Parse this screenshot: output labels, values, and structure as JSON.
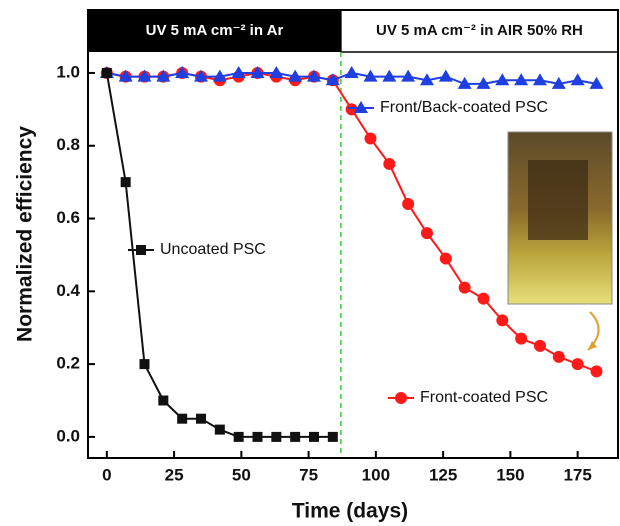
{
  "chart_data": {
    "type": "line",
    "x_label": "Time (days)",
    "y_label": "Normalized efficiency",
    "xlim": [
      -7,
      190
    ],
    "ylim": [
      -0.058,
      1.173
    ],
    "xticks": [
      0,
      25,
      50,
      75,
      100,
      125,
      150,
      175
    ],
    "yticks": [
      {
        "value": 0,
        "label": "0.0"
      },
      0.2,
      0.4,
      0.6,
      0.8,
      {
        "value": 1,
        "label": "1.0"
      }
    ],
    "divider_x": 87,
    "annotations": [
      "UV 5 mA cm⁻² in Ar",
      "UV 5 mA cm⁻² in AIR 50% RH"
    ],
    "series": [
      {
        "name": "Uncoated PSC",
        "color": "#111111",
        "marker": "square",
        "x": [
          0,
          7,
          14,
          21,
          28,
          35,
          42,
          49,
          56,
          63,
          70,
          77,
          84
        ],
        "values": [
          1.0,
          0.7,
          0.2,
          0.1,
          0.05,
          0.05,
          0.02,
          0,
          0,
          0,
          0,
          0,
          0
        ]
      },
      {
        "name": "Front-coated PSC",
        "color": "#ff1a1a",
        "marker": "circle",
        "x": [
          0,
          7,
          14,
          21,
          28,
          35,
          42,
          49,
          56,
          63,
          70,
          77,
          84,
          91,
          98,
          105,
          112,
          119,
          126,
          133,
          140,
          147,
          154,
          161,
          168,
          175,
          182
        ],
        "values": [
          1.0,
          0.99,
          0.99,
          0.99,
          1.0,
          0.99,
          0.98,
          0.99,
          1.0,
          0.99,
          0.98,
          0.99,
          0.98,
          0.9,
          0.82,
          0.75,
          0.64,
          0.56,
          0.49,
          0.41,
          0.38,
          0.32,
          0.27,
          0.25,
          0.22,
          0.2,
          0.18
        ]
      },
      {
        "name": "Front/Back-coated PSC",
        "color": "#1f3fe0",
        "marker": "triangle",
        "x": [
          0,
          7,
          14,
          21,
          28,
          35,
          42,
          49,
          56,
          63,
          70,
          77,
          84,
          91,
          98,
          105,
          112,
          119,
          126,
          133,
          140,
          147,
          154,
          161,
          168,
          175,
          182
        ],
        "values": [
          1.0,
          0.99,
          0.99,
          0.99,
          1.0,
          0.99,
          0.99,
          1.0,
          1.0,
          1.0,
          0.99,
          0.99,
          0.98,
          1.0,
          0.99,
          0.99,
          0.99,
          0.98,
          0.99,
          0.97,
          0.97,
          0.98,
          0.98,
          0.98,
          0.97,
          0.98,
          0.97
        ]
      }
    ]
  }
}
